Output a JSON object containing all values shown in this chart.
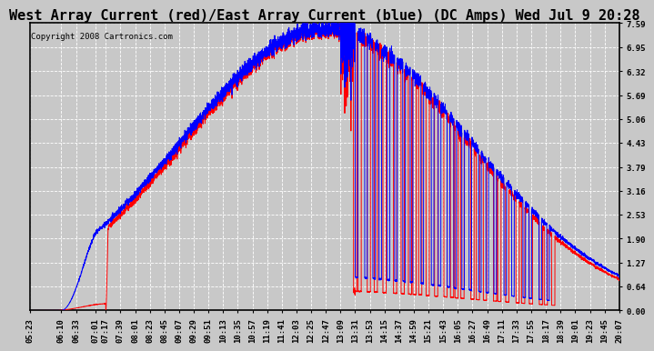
{
  "title": "West Array Current (red)/East Array Current (blue) (DC Amps) Wed Jul 9 20:28",
  "copyright": "Copyright 2008 Cartronics.com",
  "background_color": "#c8c8c8",
  "plot_bg_color": "#c8c8c8",
  "grid_color": "#aaaaaa",
  "yticks": [
    0.0,
    0.64,
    1.27,
    1.9,
    2.53,
    3.16,
    3.79,
    4.43,
    5.06,
    5.69,
    6.32,
    6.95,
    7.59
  ],
  "ymax": 7.59,
  "ymin": 0.0,
  "xtick_labels": [
    "05:23",
    "06:10",
    "06:33",
    "07:01",
    "07:17",
    "07:39",
    "08:01",
    "08:23",
    "08:45",
    "09:07",
    "09:29",
    "09:51",
    "10:13",
    "10:35",
    "10:57",
    "11:19",
    "11:41",
    "12:03",
    "12:25",
    "12:47",
    "13:09",
    "13:31",
    "13:53",
    "14:15",
    "14:37",
    "14:59",
    "15:21",
    "15:43",
    "16:05",
    "16:27",
    "16:49",
    "17:11",
    "17:33",
    "17:55",
    "18:17",
    "18:39",
    "19:01",
    "19:23",
    "19:45",
    "20:07"
  ],
  "red_color": "#ff0000",
  "blue_color": "#0000ff",
  "title_fontsize": 11,
  "tick_fontsize": 6.5,
  "copyright_fontsize": 6.5
}
